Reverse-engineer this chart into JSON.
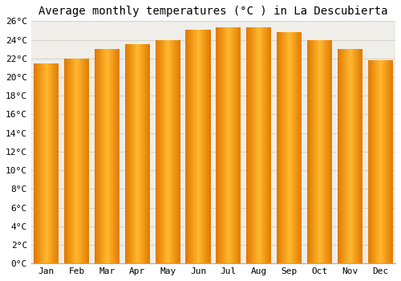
{
  "title": "Average monthly temperatures (°C ) in La Descubierta",
  "months": [
    "Jan",
    "Feb",
    "Mar",
    "Apr",
    "May",
    "Jun",
    "Jul",
    "Aug",
    "Sep",
    "Oct",
    "Nov",
    "Dec"
  ],
  "temperatures": [
    21.5,
    22.0,
    23.0,
    23.5,
    24.0,
    25.1,
    25.3,
    25.3,
    24.8,
    24.0,
    23.0,
    21.8
  ],
  "bar_color_center": "#FFB830",
  "bar_color_edge": "#E07800",
  "ylim": [
    0,
    26
  ],
  "ytick_step": 2,
  "background_color": "#ffffff",
  "plot_bg_color": "#f0eee8",
  "grid_color": "#d8d4cc",
  "title_fontsize": 10,
  "tick_fontsize": 8,
  "font_family": "monospace"
}
